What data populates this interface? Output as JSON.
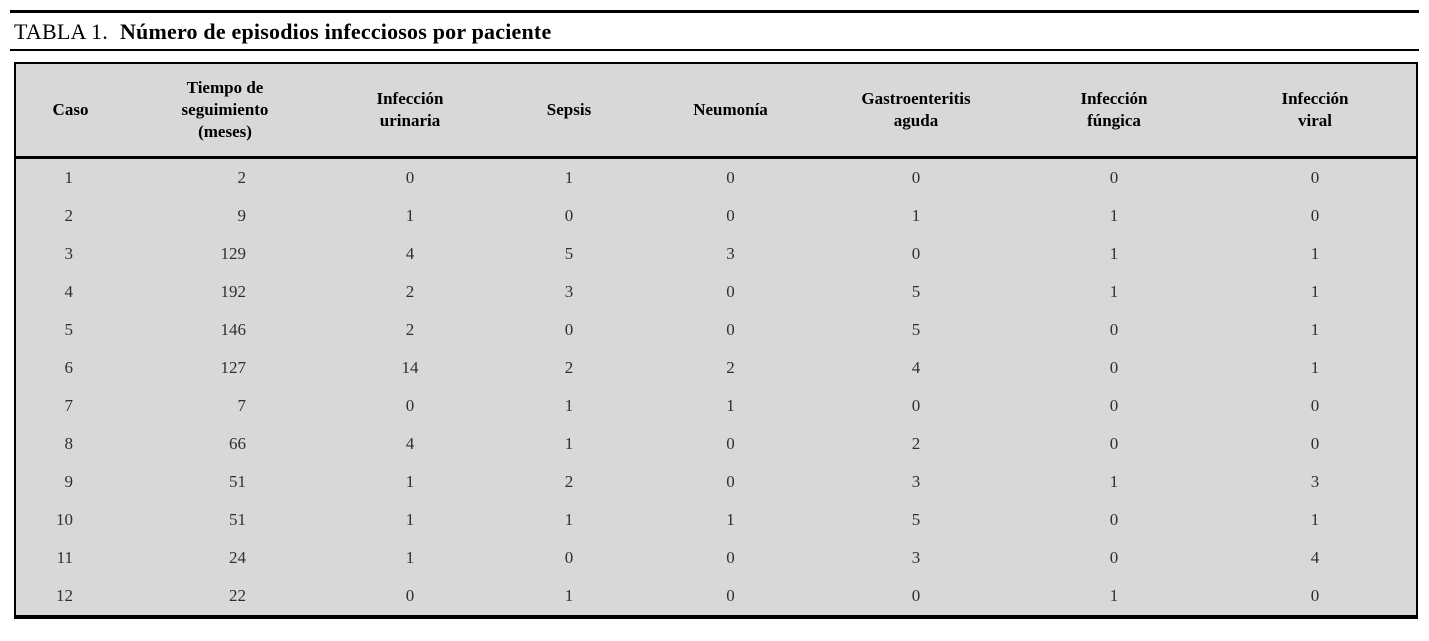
{
  "title": {
    "label": "TABLA 1.",
    "text": "Número de episodios infecciosos por paciente"
  },
  "table": {
    "columns": [
      "Caso",
      "Tiempo de\nseguimiento\n(meses)",
      "Infección\nurinaria",
      "Sepsis",
      "Neumonía",
      "Gastroenteritis\naguda",
      "Infección\nfúngica",
      "Infección\nviral"
    ],
    "rows": [
      [
        "1",
        "2",
        "0",
        "1",
        "0",
        "0",
        "0",
        "0"
      ],
      [
        "2",
        "9",
        "1",
        "0",
        "0",
        "1",
        "1",
        "0"
      ],
      [
        "3",
        "129",
        "4",
        "5",
        "3",
        "0",
        "1",
        "1"
      ],
      [
        "4",
        "192",
        "2",
        "3",
        "0",
        "5",
        "1",
        "1"
      ],
      [
        "5",
        "146",
        "2",
        "0",
        "0",
        "5",
        "0",
        "1"
      ],
      [
        "6",
        "127",
        "14",
        "2",
        "2",
        "4",
        "0",
        "1"
      ],
      [
        "7",
        "7",
        "0",
        "1",
        "1",
        "0",
        "0",
        "0"
      ],
      [
        "8",
        "66",
        "4",
        "1",
        "0",
        "2",
        "0",
        "0"
      ],
      [
        "9",
        "51",
        "1",
        "2",
        "0",
        "3",
        "1",
        "3"
      ],
      [
        "10",
        "51",
        "1",
        "1",
        "1",
        "5",
        "0",
        "1"
      ],
      [
        "11",
        "24",
        "1",
        "0",
        "0",
        "3",
        "0",
        "4"
      ],
      [
        "12",
        "22",
        "0",
        "1",
        "0",
        "0",
        "1",
        "0"
      ]
    ]
  },
  "colors": {
    "table_background": "#d8d8d8",
    "rule": "#000000"
  }
}
